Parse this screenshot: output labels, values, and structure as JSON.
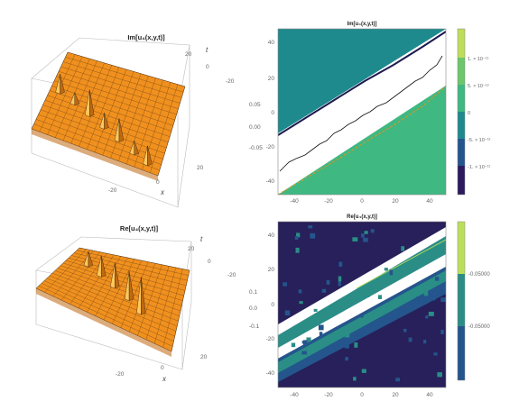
{
  "colors": {
    "surface": "#f0901e",
    "surface_dark": "#c06810",
    "surface_light": "#ffc85a",
    "mesh": "#3a2410",
    "viridis_dark": "#2b1b5e",
    "viridis_teal_dark": "#1d6e8c",
    "viridis_teal": "#1f8a8e",
    "viridis_green": "#3fb882",
    "viridis_lime": "#bedd5a",
    "navy": "#27205a",
    "blue": "#24558c",
    "teal": "#2a8e86",
    "lime": "#bcdf5a"
  },
  "chart_data": [
    {
      "type": "surface3d",
      "title": "Im[u₄(x,y,t)]",
      "xlabel": "x",
      "ylabel": "t",
      "x_ticks": [
        "-20",
        "0",
        "20"
      ],
      "t_ticks": [
        "20",
        "0",
        "-20"
      ],
      "z_ticks": [
        "0.05",
        "0.00",
        "-0.05"
      ],
      "peaks": [
        {
          "u": 0.08,
          "v": 0.48,
          "h": 1.0
        },
        {
          "u": 0.22,
          "v": 0.55,
          "h": 0.6
        },
        {
          "u": 0.36,
          "v": 0.62,
          "h": 1.4
        },
        {
          "u": 0.5,
          "v": 0.7,
          "h": 0.8
        },
        {
          "u": 0.64,
          "v": 0.78,
          "h": 1.2
        },
        {
          "u": 0.78,
          "v": 0.86,
          "h": 0.7
        },
        {
          "u": 0.9,
          "v": 0.92,
          "h": 1.0
        }
      ]
    },
    {
      "type": "heatmap",
      "title": "Im[u₄(x,y,t)]",
      "xlim": [
        -50,
        50
      ],
      "ylim": [
        -50,
        50
      ],
      "x_ticks": [
        "-40",
        "-20",
        "0",
        "20",
        "40"
      ],
      "y_ticks": [
        "40",
        "20",
        "0",
        "-20",
        "-40"
      ],
      "colorbar_ticks": [
        "1. × 10⁻¹¹",
        "5. × 10⁻¹²",
        "0",
        "-5. × 10⁻¹²",
        "-1. × 10⁻¹¹"
      ],
      "regions": [
        "-5e-12 (upper-left)",
        "5e-12 (lower-right)",
        "0 (diagonal band)"
      ]
    },
    {
      "type": "surface3d",
      "title": "Re[u₄(x,y,t)]",
      "xlabel": "x",
      "ylabel": "t",
      "x_ticks": [
        "-20",
        "0",
        "20"
      ],
      "t_ticks": [
        "20",
        "0",
        "-20"
      ],
      "z_ticks": [
        "0.1",
        "0.0",
        "-0.1"
      ],
      "peaks": [
        {
          "u": 0.18,
          "v": 0.28,
          "h": 0.7
        },
        {
          "u": 0.32,
          "v": 0.38,
          "h": 1.0
        },
        {
          "u": 0.46,
          "v": 0.48,
          "h": 1.2
        },
        {
          "u": 0.6,
          "v": 0.58,
          "h": 1.4
        },
        {
          "u": 0.72,
          "v": 0.7,
          "h": 1.8
        }
      ]
    },
    {
      "type": "heatmap",
      "title": "Re[u₄(x,y,t)]",
      "xlim": [
        -50,
        50
      ],
      "ylim": [
        -50,
        50
      ],
      "x_ticks": [
        "-40",
        "-20",
        "0",
        "20",
        "40"
      ],
      "y_ticks": [
        "40",
        "20",
        "0",
        "-20",
        "-40"
      ],
      "colorbar_ticks": [
        "-0.05000",
        "-0.05000"
      ],
      "regions": [
        "navy background",
        "blue/teal diagonal bands"
      ]
    }
  ]
}
